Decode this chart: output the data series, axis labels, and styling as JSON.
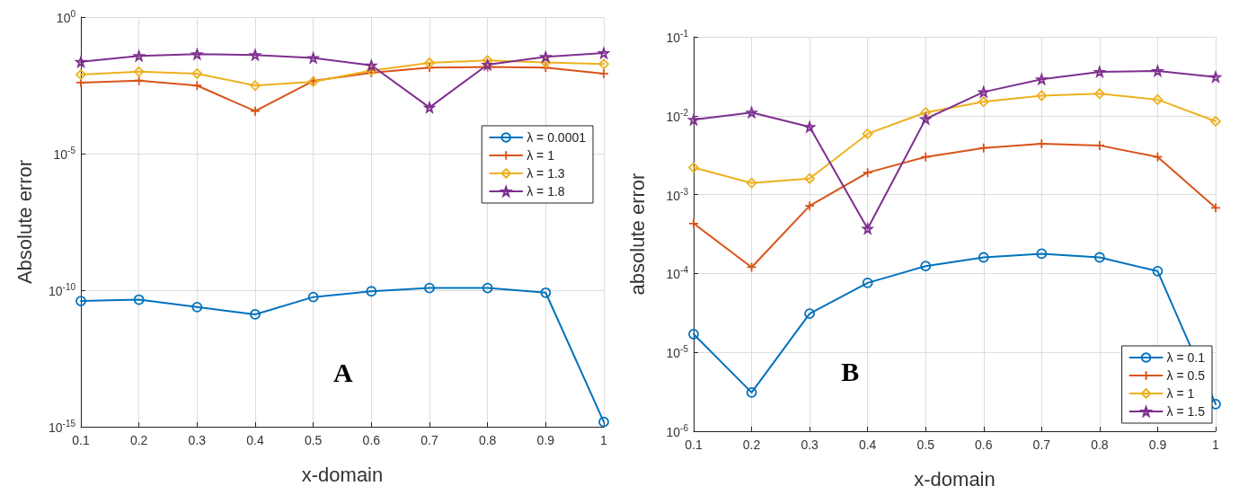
{
  "chart_data": [
    {
      "type": "line",
      "xlabel": "x-domain",
      "ylabel": "Absolute error",
      "log": "y",
      "grid": true,
      "legend": "right",
      "line_style": "solid",
      "x": [
        0.1,
        0.2,
        0.3,
        0.4,
        0.5,
        0.6,
        0.7,
        0.8,
        0.9,
        1
      ],
      "xlim": [
        0.1,
        1
      ],
      "xticks": [
        0.1,
        0.2,
        0.3,
        0.4,
        0.5,
        0.6,
        0.7,
        0.8,
        0.9,
        1
      ],
      "ylim": [
        1e-15,
        1
      ],
      "yticks": [
        {
          "value": 1e-15,
          "label": "10$^{-15}$"
        },
        {
          "value": 1e-10,
          "label": "10$^{-10}$"
        },
        {
          "value": 1e-05,
          "label": "10$^{-5}$"
        },
        {
          "value": 1,
          "label": "10$^{0}$"
        }
      ],
      "annotations": [
        "A"
      ],
      "series": [
        {
          "name": "λ = 0.0001",
          "color": "#0072bd",
          "marker": "circle",
          "values": [
            4e-11,
            4.5e-11,
            2.4e-11,
            1.3e-11,
            5.6e-11,
            9.1e-11,
            1.2e-10,
            1.2e-10,
            8.1e-11,
            1.5e-15
          ]
        },
        {
          "name": "λ = 1",
          "color": "#d95319",
          "marker": "cross",
          "values": [
            0.004,
            0.0047,
            0.0031,
            0.00036,
            0.0046,
            0.0091,
            0.014,
            0.015,
            0.014,
            0.0085
          ]
        },
        {
          "name": "λ = 1.3",
          "color": "#edb120",
          "marker": "diamond",
          "values": [
            0.0078,
            0.01,
            0.0085,
            0.0031,
            0.0043,
            0.011,
            0.021,
            0.026,
            0.022,
            0.019
          ]
        },
        {
          "name": "λ = 1.8",
          "color": "#7e2f8e",
          "marker": "star",
          "values": [
            0.023,
            0.038,
            0.044,
            0.041,
            0.032,
            0.017,
            0.00049,
            0.018,
            0.035,
            0.048
          ]
        }
      ]
    },
    {
      "type": "line",
      "xlabel": "x-domain",
      "ylabel": "absolute error",
      "log": "y",
      "grid": true,
      "legend": "bottom right",
      "line_style": "solid",
      "x": [
        0.1,
        0.2,
        0.3,
        0.4,
        0.5,
        0.6,
        0.7,
        0.8,
        0.9,
        1
      ],
      "xlim": [
        0.1,
        1
      ],
      "xticks": [
        0.1,
        0.2,
        0.3,
        0.4,
        0.5,
        0.6,
        0.7,
        0.8,
        0.9,
        1
      ],
      "ylim": [
        1e-06,
        0.1
      ],
      "yticks": [
        {
          "value": 1e-06,
          "label": "10$^{-6}$"
        },
        {
          "value": 1e-05,
          "label": "10$^{-5}$"
        },
        {
          "value": 0.0001,
          "label": "10$^{-4}$"
        },
        {
          "value": 0.001,
          "label": "10$^{-3}$"
        },
        {
          "value": 0.01,
          "label": "10$^{-2}$"
        },
        {
          "value": 0.1,
          "label": "10$^{-1}$"
        }
      ],
      "annotations": [
        "B"
      ],
      "series": [
        {
          "name": "λ = 0.1",
          "color": "#0072bd",
          "marker": "circle",
          "values": [
            1.7e-05,
            3.1e-06,
            3.1e-05,
            7.6e-05,
            0.000124,
            0.00016,
            0.000178,
            0.00016,
            0.000107,
            2.2e-06
          ]
        },
        {
          "name": "λ = 0.5",
          "color": "#d95319",
          "marker": "cross",
          "values": [
            0.00043,
            0.00012,
            0.00072,
            0.0019,
            0.003,
            0.0039,
            0.0044,
            0.0042,
            0.003,
            0.00068
          ]
        },
        {
          "name": "λ = 1",
          "color": "#edb120",
          "marker": "diamond",
          "values": [
            0.0022,
            0.0014,
            0.0016,
            0.0059,
            0.011,
            0.015,
            0.018,
            0.019,
            0.016,
            0.0085
          ]
        },
        {
          "name": "λ = 1.5",
          "color": "#7e2f8e",
          "marker": "star",
          "values": [
            0.0089,
            0.011,
            0.0072,
            0.00037,
            0.0091,
            0.02,
            0.029,
            0.036,
            0.037,
            0.031
          ]
        }
      ]
    }
  ]
}
